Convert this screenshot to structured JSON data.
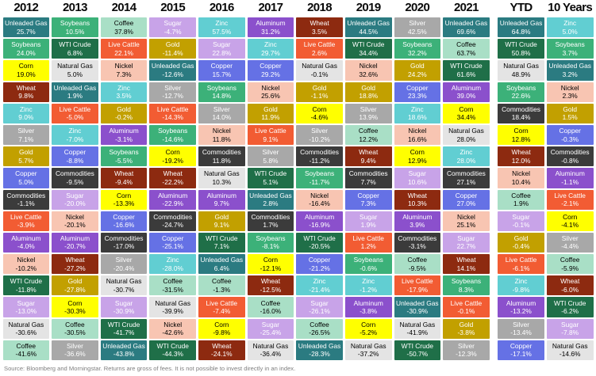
{
  "footer": {
    "source": "Source: Bloomberg and Morningstar. Returns are gross of fees. It is not possible to invest directly in an index."
  },
  "colors": {
    "Unleaded Gas": {
      "bg": "#2b7b81",
      "text": "#ffffff"
    },
    "Soybeans": {
      "bg": "#3cb179",
      "text": "#ffffff"
    },
    "Corn": {
      "bg": "#ffff00",
      "text": "#000000"
    },
    "Wheat": {
      "bg": "#8d2a10",
      "text": "#ffffff"
    },
    "Zinc": {
      "bg": "#61ced2",
      "text": "#ffffff"
    },
    "Silver": {
      "bg": "#a8a8a8",
      "text": "#ffffff"
    },
    "Gold": {
      "bg": "#c2a000",
      "text": "#ffffff"
    },
    "Copper": {
      "bg": "#6571e5",
      "text": "#ffffff"
    },
    "Commodities": {
      "bg": "#3b3b3b",
      "text": "#ffffff"
    },
    "Live Cattle": {
      "bg": "#f25c33",
      "text": "#ffffff"
    },
    "Aluminum": {
      "bg": "#8b50cc",
      "text": "#ffffff"
    },
    "Nickel": {
      "bg": "#f8c5b2",
      "text": "#000000"
    },
    "WTI Crude": {
      "bg": "#1f6f48",
      "text": "#ffffff"
    },
    "Sugar": {
      "bg": "#c8a3e8",
      "text": "#ffffff"
    },
    "Natural Gas": {
      "bg": "#e4e4e4",
      "text": "#000000"
    },
    "Coffee": {
      "bg": "#a9dfc6",
      "text": "#000000"
    }
  },
  "chart_data": {
    "type": "table",
    "description": "Annual commodity returns ranked best-to-worst per column, color-coded by commodity",
    "columns": [
      {
        "label": "2012",
        "gap_before": false,
        "cells": [
          {
            "name": "Unleaded Gas",
            "value": "25.7%"
          },
          {
            "name": "Soybeans",
            "value": "24.0%"
          },
          {
            "name": "Corn",
            "value": "19.0%"
          },
          {
            "name": "Wheat",
            "value": "9.8%"
          },
          {
            "name": "Zinc",
            "value": "9.0%"
          },
          {
            "name": "Silver",
            "value": "7.1%"
          },
          {
            "name": "Gold",
            "value": "5.7%"
          },
          {
            "name": "Copper",
            "value": "5.0%"
          },
          {
            "name": "Commodities",
            "value": "-1.1%"
          },
          {
            "name": "Live Cattle",
            "value": "-3.9%"
          },
          {
            "name": "Aluminum",
            "value": "-4.0%"
          },
          {
            "name": "Nickel",
            "value": "-10.2%"
          },
          {
            "name": "WTI Crude",
            "value": "-11.8%"
          },
          {
            "name": "Sugar",
            "value": "-13.0%"
          },
          {
            "name": "Natural Gas",
            "value": "-30.6%"
          },
          {
            "name": "Coffee",
            "value": "-41.6%"
          }
        ]
      },
      {
        "label": "2013",
        "gap_before": false,
        "cells": [
          {
            "name": "Soybeans",
            "value": "10.5%"
          },
          {
            "name": "WTI Crude",
            "value": "6.8%"
          },
          {
            "name": "Natural Gas",
            "value": "5.0%"
          },
          {
            "name": "Unleaded Gas",
            "value": "1.9%"
          },
          {
            "name": "Live Cattle",
            "value": "-5.0%"
          },
          {
            "name": "Zinc",
            "value": "-7.0%"
          },
          {
            "name": "Copper",
            "value": "-8.8%"
          },
          {
            "name": "Commodities",
            "value": "-9.5%"
          },
          {
            "name": "Sugar",
            "value": "-20.0%"
          },
          {
            "name": "Nickel",
            "value": "-20.1%"
          },
          {
            "name": "Aluminum",
            "value": "-20.7%"
          },
          {
            "name": "Wheat",
            "value": "-27.2%"
          },
          {
            "name": "Gold",
            "value": "-27.8%"
          },
          {
            "name": "Corn",
            "value": "-30.3%"
          },
          {
            "name": "Coffee",
            "value": "-30.5%"
          },
          {
            "name": "Silver",
            "value": "-36.6%"
          }
        ]
      },
      {
        "label": "2014",
        "gap_before": false,
        "cells": [
          {
            "name": "Coffee",
            "value": "37.8%"
          },
          {
            "name": "Live Cattle",
            "value": "22.1%"
          },
          {
            "name": "Nickel",
            "value": "7.3%"
          },
          {
            "name": "Zinc",
            "value": "3.5%"
          },
          {
            "name": "Gold",
            "value": "-0.2%"
          },
          {
            "name": "Aluminum",
            "value": "-3.1%"
          },
          {
            "name": "Soybeans",
            "value": "-5.5%"
          },
          {
            "name": "Wheat",
            "value": "-9.4%"
          },
          {
            "name": "Corn",
            "value": "-13.3%"
          },
          {
            "name": "Copper",
            "value": "-16.6%"
          },
          {
            "name": "Commodities",
            "value": "-17.0%"
          },
          {
            "name": "Silver",
            "value": "-20.4%"
          },
          {
            "name": "Natural Gas",
            "value": "-30.7%"
          },
          {
            "name": "Sugar",
            "value": "-30.9%"
          },
          {
            "name": "WTI Crude",
            "value": "-41.7%"
          },
          {
            "name": "Unleaded Gas",
            "value": "-43.8%"
          }
        ]
      },
      {
        "label": "2015",
        "gap_before": false,
        "cells": [
          {
            "name": "Sugar",
            "value": "-4.7%"
          },
          {
            "name": "Gold",
            "value": "-11.4%"
          },
          {
            "name": "Unleaded Gas",
            "value": "-12.6%"
          },
          {
            "name": "Silver",
            "value": "-12.7%"
          },
          {
            "name": "Live Cattle",
            "value": "-14.3%"
          },
          {
            "name": "Soybeans",
            "value": "-14.6%"
          },
          {
            "name": "Corn",
            "value": "-19.2%"
          },
          {
            "name": "Wheat",
            "value": "-22.2%"
          },
          {
            "name": "Aluminum",
            "value": "-22.9%"
          },
          {
            "name": "Commodities",
            "value": "-24.7%"
          },
          {
            "name": "Copper",
            "value": "-25.1%"
          },
          {
            "name": "Zinc",
            "value": "-28.0%"
          },
          {
            "name": "Coffee",
            "value": "-31.5%"
          },
          {
            "name": "Natural Gas",
            "value": "-39.9%"
          },
          {
            "name": "Nickel",
            "value": "-42.6%"
          },
          {
            "name": "WTI Crude",
            "value": "-44.3%"
          }
        ]
      },
      {
        "label": "2016",
        "gap_before": false,
        "cells": [
          {
            "name": "Zinc",
            "value": "57.5%"
          },
          {
            "name": "Sugar",
            "value": "22.8%"
          },
          {
            "name": "Copper",
            "value": "15.7%"
          },
          {
            "name": "Soybeans",
            "value": "14.8%"
          },
          {
            "name": "Silver",
            "value": "14.0%"
          },
          {
            "name": "Nickel",
            "value": "11.8%"
          },
          {
            "name": "Commodities",
            "value": "11.8%"
          },
          {
            "name": "Natural Gas",
            "value": "10.3%"
          },
          {
            "name": "Aluminum",
            "value": "9.7%"
          },
          {
            "name": "Gold",
            "value": "9.1%"
          },
          {
            "name": "WTI Crude",
            "value": "7.1%"
          },
          {
            "name": "Unleaded Gas",
            "value": "6.4%"
          },
          {
            "name": "Coffee",
            "value": "-1.3%"
          },
          {
            "name": "Live Cattle",
            "value": "-7.4%"
          },
          {
            "name": "Corn",
            "value": "-9.8%"
          },
          {
            "name": "Wheat",
            "value": "-24.1%"
          }
        ]
      },
      {
        "label": "2017",
        "gap_before": false,
        "cells": [
          {
            "name": "Aluminum",
            "value": "31.2%"
          },
          {
            "name": "Zinc",
            "value": "29.7%"
          },
          {
            "name": "Copper",
            "value": "29.2%"
          },
          {
            "name": "Nickel",
            "value": "25.6%"
          },
          {
            "name": "Gold",
            "value": "11.9%"
          },
          {
            "name": "Live Cattle",
            "value": "9.1%"
          },
          {
            "name": "Silver",
            "value": "5.8%"
          },
          {
            "name": "WTI Crude",
            "value": "5.1%"
          },
          {
            "name": "Unleaded Gas",
            "value": "2.8%"
          },
          {
            "name": "Commodities",
            "value": "1.7%"
          },
          {
            "name": "Soybeans",
            "value": "-8.1%"
          },
          {
            "name": "Corn",
            "value": "-12.1%"
          },
          {
            "name": "Wheat",
            "value": "-12.5%"
          },
          {
            "name": "Coffee",
            "value": "-16.0%"
          },
          {
            "name": "Sugar",
            "value": "-25.4%"
          },
          {
            "name": "Natural Gas",
            "value": "-36.4%"
          }
        ]
      },
      {
        "label": "2018",
        "gap_before": false,
        "cells": [
          {
            "name": "Wheat",
            "value": "3.5%"
          },
          {
            "name": "Live Cattle",
            "value": "2.6%"
          },
          {
            "name": "Natural Gas",
            "value": "-0.1%"
          },
          {
            "name": "Gold",
            "value": "-1.1%"
          },
          {
            "name": "Corn",
            "value": "-4.6%"
          },
          {
            "name": "Silver",
            "value": "-10.2%"
          },
          {
            "name": "Commodities",
            "value": "-11.2%"
          },
          {
            "name": "Soybeans",
            "value": "-11.7%"
          },
          {
            "name": "Nickel",
            "value": "-16.4%"
          },
          {
            "name": "Aluminum",
            "value": "-16.9%"
          },
          {
            "name": "WTI Crude",
            "value": "-20.5%"
          },
          {
            "name": "Copper",
            "value": "-21.2%"
          },
          {
            "name": "Zinc",
            "value": "-21.4%"
          },
          {
            "name": "Sugar",
            "value": "-26.1%"
          },
          {
            "name": "Coffee",
            "value": "-26.5%"
          },
          {
            "name": "Unleaded Gas",
            "value": "-28.3%"
          }
        ]
      },
      {
        "label": "2019",
        "gap_before": false,
        "cells": [
          {
            "name": "Unleaded Gas",
            "value": "44.5%"
          },
          {
            "name": "WTI Crude",
            "value": "34.4%"
          },
          {
            "name": "Nickel",
            "value": "32.6%"
          },
          {
            "name": "Gold",
            "value": "18.8%"
          },
          {
            "name": "Silver",
            "value": "13.9%"
          },
          {
            "name": "Coffee",
            "value": "12.2%"
          },
          {
            "name": "Wheat",
            "value": "9.4%"
          },
          {
            "name": "Commodities",
            "value": "7.7%"
          },
          {
            "name": "Copper",
            "value": "7.3%"
          },
          {
            "name": "Sugar",
            "value": "1.9%"
          },
          {
            "name": "Live Cattle",
            "value": "1.2%"
          },
          {
            "name": "Soybeans",
            "value": "-0.6%"
          },
          {
            "name": "Zinc",
            "value": "-1.2%"
          },
          {
            "name": "Aluminum",
            "value": "-3.8%"
          },
          {
            "name": "Corn",
            "value": "-5.2%"
          },
          {
            "name": "Natural Gas",
            "value": "-37.2%"
          }
        ]
      },
      {
        "label": "2020",
        "gap_before": false,
        "cells": [
          {
            "name": "Silver",
            "value": "42.5%"
          },
          {
            "name": "Soybeans",
            "value": "32.2%"
          },
          {
            "name": "Gold",
            "value": "24.2%"
          },
          {
            "name": "Copper",
            "value": "23.3%"
          },
          {
            "name": "Zinc",
            "value": "18.6%"
          },
          {
            "name": "Nickel",
            "value": "16.6%"
          },
          {
            "name": "Corn",
            "value": "12.9%"
          },
          {
            "name": "Sugar",
            "value": "10.6%"
          },
          {
            "name": "Wheat",
            "value": "10.3%"
          },
          {
            "name": "Aluminum",
            "value": "3.9%"
          },
          {
            "name": "Commodities",
            "value": "-3.1%"
          },
          {
            "name": "Coffee",
            "value": "-9.5%"
          },
          {
            "name": "Live Cattle",
            "value": "-17.9%"
          },
          {
            "name": "Unleaded Gas",
            "value": "-30.9%"
          },
          {
            "name": "Natural Gas",
            "value": "-41.9%"
          },
          {
            "name": "WTI Crude",
            "value": "-50.7%"
          }
        ]
      },
      {
        "label": "2021",
        "gap_before": false,
        "cells": [
          {
            "name": "Unleaded Gas",
            "value": "69.6%"
          },
          {
            "name": "Coffee",
            "value": "63.7%"
          },
          {
            "name": "WTI Crude",
            "value": "61.6%"
          },
          {
            "name": "Aluminum",
            "value": "39.0%"
          },
          {
            "name": "Corn",
            "value": "34.4%"
          },
          {
            "name": "Natural Gas",
            "value": "28.0%"
          },
          {
            "name": "Zinc",
            "value": "28.0%"
          },
          {
            "name": "Commodities",
            "value": "27.1%"
          },
          {
            "name": "Copper",
            "value": "27.0%"
          },
          {
            "name": "Nickel",
            "value": "25.1%"
          },
          {
            "name": "Sugar",
            "value": "22.7%"
          },
          {
            "name": "Wheat",
            "value": "14.1%"
          },
          {
            "name": "Soybeans",
            "value": "8.3%"
          },
          {
            "name": "Live Cattle",
            "value": "-0.1%"
          },
          {
            "name": "Gold",
            "value": "-3.8%"
          },
          {
            "name": "Silver",
            "value": "-12.3%"
          }
        ]
      },
      {
        "label": "YTD",
        "gap_before": true,
        "cells": [
          {
            "name": "Unleaded Gas",
            "value": "64.8%"
          },
          {
            "name": "WTI Crude",
            "value": "50.8%"
          },
          {
            "name": "Natural Gas",
            "value": "48.9%"
          },
          {
            "name": "Soybeans",
            "value": "22.6%"
          },
          {
            "name": "Commodities",
            "value": "18.4%"
          },
          {
            "name": "Corn",
            "value": "12.8%"
          },
          {
            "name": "Wheat",
            "value": "12.0%"
          },
          {
            "name": "Nickel",
            "value": "10.4%"
          },
          {
            "name": "Coffee",
            "value": "1.9%"
          },
          {
            "name": "Sugar",
            "value": "-0.1%"
          },
          {
            "name": "Gold",
            "value": "-0.4%"
          },
          {
            "name": "Live Cattle",
            "value": "-6.1%"
          },
          {
            "name": "Zinc",
            "value": "-9.8%"
          },
          {
            "name": "Aluminum",
            "value": "-13.2%"
          },
          {
            "name": "Silver",
            "value": "-13.4%"
          },
          {
            "name": "Copper",
            "value": "-17.1%"
          }
        ]
      },
      {
        "label": "10 Years",
        "gap_before": false,
        "cells": [
          {
            "name": "Zinc",
            "value": "5.0%"
          },
          {
            "name": "Soybeans",
            "value": "3.7%"
          },
          {
            "name": "Unleaded Gas",
            "value": "3.2%"
          },
          {
            "name": "Nickel",
            "value": "2.3%"
          },
          {
            "name": "Gold",
            "value": "1.5%"
          },
          {
            "name": "Copper",
            "value": "-0.3%"
          },
          {
            "name": "Commodities",
            "value": "-0.8%"
          },
          {
            "name": "Aluminum",
            "value": "-1.1%"
          },
          {
            "name": "Live Cattle",
            "value": "-2.1%"
          },
          {
            "name": "Corn",
            "value": "-4.1%"
          },
          {
            "name": "Silver",
            "value": "-4.4%"
          },
          {
            "name": "Coffee",
            "value": "-5.9%"
          },
          {
            "name": "Wheat",
            "value": "-6.0%"
          },
          {
            "name": "WTI Crude",
            "value": "-6.2%"
          },
          {
            "name": "Sugar",
            "value": "-7.8%"
          },
          {
            "name": "Natural Gas",
            "value": "-14.6%"
          }
        ]
      }
    ]
  }
}
